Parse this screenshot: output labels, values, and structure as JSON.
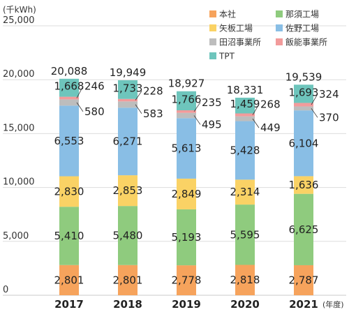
{
  "chart_data": {
    "type": "bar",
    "stacked": true,
    "ylabel": "(千kWh)",
    "xlabel": "(年度)",
    "ylim": [
      0,
      25000
    ],
    "yticks": [
      0,
      5000,
      10000,
      15000,
      20000,
      25000
    ],
    "ytick_labels": [
      "0",
      "5,000",
      "10,000",
      "15,000",
      "20,000",
      "25,000"
    ],
    "categories": [
      "2017",
      "2018",
      "2019",
      "2020",
      "2021"
    ],
    "totals": [
      20088,
      19949,
      18927,
      18331,
      19539
    ],
    "total_labels": [
      "20,088",
      "19,949",
      "18,927",
      "18,331",
      "19,539"
    ],
    "legend_position": "top-right",
    "series": [
      {
        "name": "本社",
        "color": "#F6A35C",
        "values": [
          2801,
          2801,
          2778,
          2818,
          2787
        ],
        "labels": [
          "2,801",
          "2,801",
          "2,778",
          "2,818",
          "2,787"
        ]
      },
      {
        "name": "那須工場",
        "color": "#8FCB7E",
        "values": [
          5410,
          5480,
          5193,
          5595,
          6625
        ],
        "labels": [
          "5,410",
          "5,480",
          "5,193",
          "5,595",
          "6,625"
        ]
      },
      {
        "name": "矢板工場",
        "color": "#FAD265",
        "values": [
          2830,
          2853,
          2849,
          2314,
          1636
        ],
        "labels": [
          "2,830",
          "2,853",
          "2,849",
          "2,314",
          "1,636"
        ]
      },
      {
        "name": "佐野工場",
        "color": "#89BEE5",
        "values": [
          6553,
          6271,
          5613,
          5428,
          6104
        ],
        "labels": [
          "6,553",
          "6,271",
          "5,613",
          "5,428",
          "6,104"
        ]
      },
      {
        "name": "田沼事業所",
        "color": "#BDBDBD",
        "values": [
          580,
          583,
          495,
          449,
          370
        ],
        "labels": [
          "580",
          "583",
          "495",
          "449",
          "370"
        ]
      },
      {
        "name": "飯能事業所",
        "color": "#F29B9B",
        "values": [
          246,
          228,
          235,
          268,
          324
        ],
        "labels": [
          "246",
          "228",
          "235",
          "268",
          "324"
        ]
      },
      {
        "name": "TPT",
        "color": "#6EC5BC",
        "values": [
          1668,
          1733,
          1766,
          1459,
          1693
        ],
        "labels": [
          "1,668",
          "1,733",
          "1,766",
          "1,459",
          "1,693"
        ]
      }
    ]
  }
}
